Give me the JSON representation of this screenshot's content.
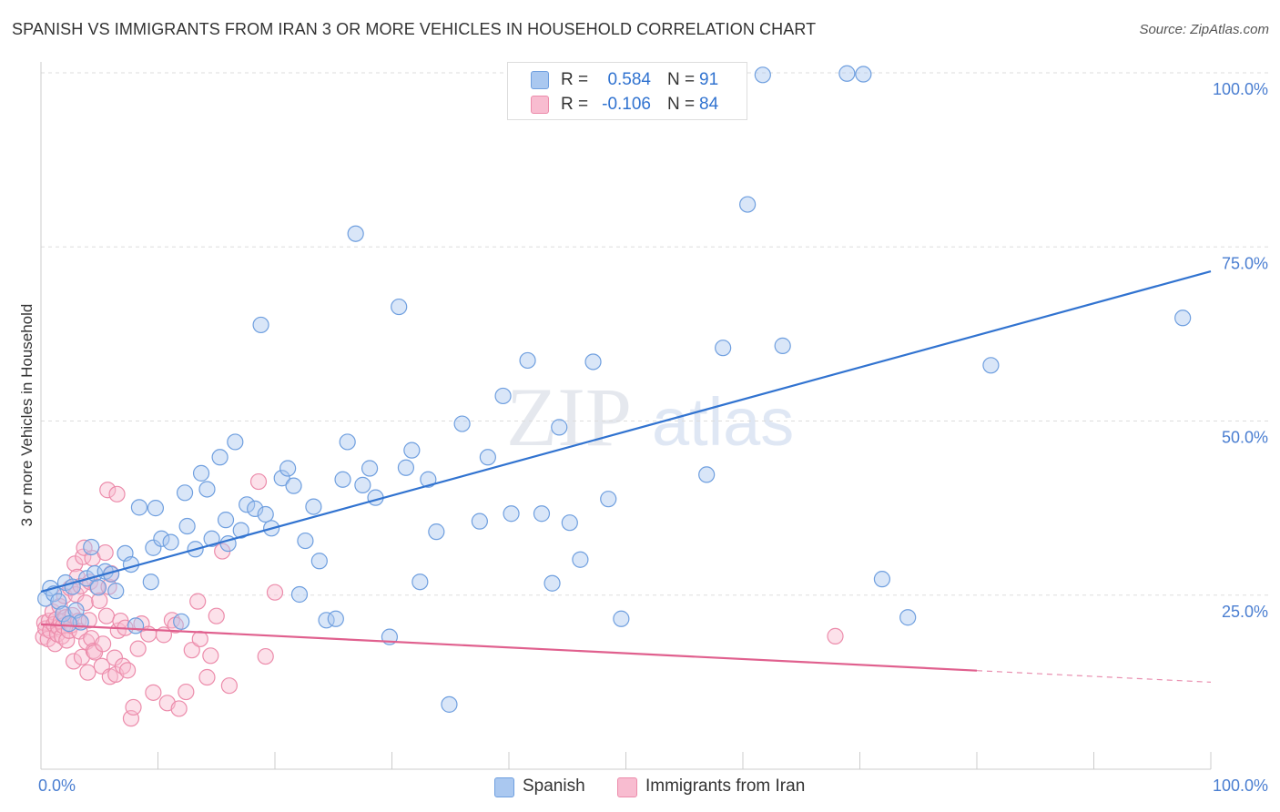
{
  "header": {
    "title": "SPANISH VS IMMIGRANTS FROM IRAN 3 OR MORE VEHICLES IN HOUSEHOLD CORRELATION CHART",
    "source": "Source: ZipAtlas.com"
  },
  "watermark": {
    "part1": "ZIP",
    "part2": "atlas"
  },
  "colors": {
    "spanish_fill": "#aac8f0",
    "spanish_stroke": "#6f9fdf",
    "spanish_line": "#3173d0",
    "iran_fill": "#f8bcd0",
    "iran_stroke": "#ec8cab",
    "iran_line": "#e0608e",
    "axis_label": "#4a7ed1",
    "grid": "#dddddd"
  },
  "legend": {
    "rows": [
      {
        "series": "spanish",
        "r_label": "R =",
        "r_value": "0.584",
        "n_label": "N =",
        "n_value": "91"
      },
      {
        "series": "iran",
        "r_label": "R =",
        "r_value": "-0.106",
        "n_label": "N =",
        "n_value": "84"
      }
    ]
  },
  "chart_data": {
    "type": "scatter",
    "title": "SPANISH VS IMMIGRANTS FROM IRAN 3 OR MORE VEHICLES IN HOUSEHOLD CORRELATION CHART",
    "xlabel": "",
    "ylabel": "3 or more Vehicles in Household",
    "xlim": [
      0,
      100
    ],
    "ylim": [
      0,
      100
    ],
    "x_tick_labels": [
      "0.0%",
      "100.0%"
    ],
    "y_tick_labels": [
      {
        "value": 100,
        "label": "100.0%"
      },
      {
        "value": 75,
        "label": "75.0%"
      },
      {
        "value": 50,
        "label": "50.0%"
      },
      {
        "value": 25,
        "label": "25.0%"
      }
    ],
    "grid": true,
    "legend_position": "top-center",
    "series": [
      {
        "name": "Spanish",
        "r": 0.584,
        "n": 91,
        "trend": {
          "x0": 0,
          "y0": 25.5,
          "x1": 100,
          "y1": 71.5,
          "solid_until": 100
        },
        "points": [
          [
            0.4,
            24.5
          ],
          [
            0.8,
            26.0
          ],
          [
            1.1,
            25.2
          ],
          [
            1.5,
            24.1
          ],
          [
            1.9,
            22.3
          ],
          [
            2.1,
            26.8
          ],
          [
            2.7,
            26.2
          ],
          [
            3.0,
            22.8
          ],
          [
            3.4,
            21.1
          ],
          [
            3.9,
            27.4
          ],
          [
            4.3,
            31.9
          ],
          [
            4.6,
            28.1
          ],
          [
            4.9,
            26.1
          ],
          [
            5.5,
            28.4
          ],
          [
            6.0,
            28.0
          ],
          [
            6.4,
            25.6
          ],
          [
            7.2,
            31.0
          ],
          [
            7.7,
            29.4
          ],
          [
            8.4,
            37.6
          ],
          [
            9.4,
            26.9
          ],
          [
            9.6,
            31.8
          ],
          [
            9.8,
            37.5
          ],
          [
            10.3,
            33.1
          ],
          [
            11.1,
            32.6
          ],
          [
            12.3,
            39.7
          ],
          [
            12.5,
            34.9
          ],
          [
            13.2,
            31.6
          ],
          [
            13.7,
            42.5
          ],
          [
            14.2,
            40.2
          ],
          [
            14.6,
            33.1
          ],
          [
            15.3,
            44.8
          ],
          [
            15.8,
            35.8
          ],
          [
            16.0,
            32.4
          ],
          [
            16.6,
            47.0
          ],
          [
            17.1,
            34.3
          ],
          [
            17.6,
            38.0
          ],
          [
            18.3,
            37.4
          ],
          [
            18.8,
            63.8
          ],
          [
            19.2,
            36.6
          ],
          [
            19.7,
            34.6
          ],
          [
            20.6,
            41.8
          ],
          [
            21.1,
            43.2
          ],
          [
            21.6,
            40.7
          ],
          [
            22.1,
            25.1
          ],
          [
            22.6,
            32.8
          ],
          [
            23.3,
            37.7
          ],
          [
            23.8,
            29.9
          ],
          [
            24.4,
            21.4
          ],
          [
            25.2,
            21.6
          ],
          [
            25.8,
            41.6
          ],
          [
            26.2,
            47.0
          ],
          [
            26.9,
            76.9
          ],
          [
            27.5,
            40.8
          ],
          [
            28.1,
            43.2
          ],
          [
            28.6,
            39.0
          ],
          [
            29.8,
            19.0
          ],
          [
            30.6,
            66.4
          ],
          [
            31.2,
            43.3
          ],
          [
            31.7,
            45.8
          ],
          [
            32.4,
            26.9
          ],
          [
            33.1,
            41.6
          ],
          [
            33.8,
            34.1
          ],
          [
            34.9,
            9.3
          ],
          [
            36.0,
            49.6
          ],
          [
            37.5,
            35.6
          ],
          [
            38.2,
            44.8
          ],
          [
            39.5,
            53.6
          ],
          [
            40.2,
            36.7
          ],
          [
            41.6,
            58.7
          ],
          [
            42.8,
            36.7
          ],
          [
            43.7,
            26.7
          ],
          [
            44.3,
            49.1
          ],
          [
            45.2,
            35.4
          ],
          [
            46.1,
            30.1
          ],
          [
            47.2,
            58.5
          ],
          [
            48.5,
            38.8
          ],
          [
            49.6,
            21.6
          ],
          [
            56.9,
            42.3
          ],
          [
            58.3,
            60.5
          ],
          [
            60.4,
            81.1
          ],
          [
            61.7,
            99.7
          ],
          [
            63.4,
            60.8
          ],
          [
            68.9,
            99.9
          ],
          [
            70.3,
            99.8
          ],
          [
            71.9,
            27.3
          ],
          [
            74.1,
            21.8
          ],
          [
            81.2,
            58.0
          ],
          [
            97.6,
            64.8
          ],
          [
            2.4,
            20.9
          ],
          [
            8.1,
            20.6
          ],
          [
            12.0,
            21.2
          ]
        ]
      },
      {
        "name": "Immigrants from Iran",
        "r": -0.106,
        "n": 84,
        "trend": {
          "x0": 0,
          "y0": 20.8,
          "x1": 100,
          "y1": 12.5,
          "solid_until": 80
        },
        "points": [
          [
            0.2,
            19.0
          ],
          [
            0.3,
            21.0
          ],
          [
            0.4,
            20.2
          ],
          [
            0.6,
            18.7
          ],
          [
            0.7,
            21.3
          ],
          [
            0.8,
            19.9
          ],
          [
            1.0,
            22.6
          ],
          [
            1.1,
            20.8
          ],
          [
            1.2,
            18.0
          ],
          [
            1.3,
            21.5
          ],
          [
            1.4,
            19.4
          ],
          [
            1.5,
            20.4
          ],
          [
            1.6,
            23.4
          ],
          [
            1.7,
            21.2
          ],
          [
            1.8,
            19.1
          ],
          [
            1.9,
            20.6
          ],
          [
            2.0,
            24.9
          ],
          [
            2.1,
            21.8
          ],
          [
            2.2,
            18.5
          ],
          [
            2.4,
            19.9
          ],
          [
            2.5,
            26.0
          ],
          [
            2.6,
            20.7
          ],
          [
            2.7,
            22.1
          ],
          [
            2.8,
            15.5
          ],
          [
            2.9,
            29.5
          ],
          [
            3.0,
            25.1
          ],
          [
            3.1,
            27.6
          ],
          [
            3.2,
            21.3
          ],
          [
            3.3,
            19.8
          ],
          [
            3.4,
            26.3
          ],
          [
            3.5,
            16.1
          ],
          [
            3.6,
            30.5
          ],
          [
            3.7,
            31.8
          ],
          [
            3.8,
            23.9
          ],
          [
            3.9,
            18.3
          ],
          [
            4.0,
            13.9
          ],
          [
            4.1,
            21.4
          ],
          [
            4.2,
            26.9
          ],
          [
            4.3,
            18.8
          ],
          [
            4.4,
            30.3
          ],
          [
            4.5,
            17.0
          ],
          [
            4.6,
            16.8
          ],
          [
            4.8,
            26.2
          ],
          [
            5.0,
            24.2
          ],
          [
            5.2,
            14.8
          ],
          [
            5.3,
            18.0
          ],
          [
            5.5,
            31.1
          ],
          [
            5.6,
            22.0
          ],
          [
            5.7,
            40.1
          ],
          [
            5.8,
            26.2
          ],
          [
            5.9,
            13.3
          ],
          [
            6.0,
            28.1
          ],
          [
            6.3,
            16.0
          ],
          [
            6.4,
            13.6
          ],
          [
            6.5,
            39.5
          ],
          [
            6.6,
            19.9
          ],
          [
            6.8,
            21.3
          ],
          [
            7.0,
            14.8
          ],
          [
            7.2,
            20.3
          ],
          [
            7.4,
            14.2
          ],
          [
            7.7,
            7.3
          ],
          [
            7.9,
            8.9
          ],
          [
            8.3,
            17.3
          ],
          [
            8.6,
            20.9
          ],
          [
            9.2,
            19.4
          ],
          [
            9.6,
            11.0
          ],
          [
            10.5,
            19.3
          ],
          [
            10.8,
            9.5
          ],
          [
            11.2,
            21.4
          ],
          [
            11.5,
            20.7
          ],
          [
            11.8,
            8.7
          ],
          [
            12.4,
            11.1
          ],
          [
            12.9,
            17.1
          ],
          [
            13.4,
            24.1
          ],
          [
            13.6,
            18.7
          ],
          [
            14.2,
            13.2
          ],
          [
            14.5,
            16.3
          ],
          [
            15.0,
            22.0
          ],
          [
            15.5,
            31.3
          ],
          [
            16.1,
            12.0
          ],
          [
            18.6,
            41.3
          ],
          [
            19.2,
            16.2
          ],
          [
            20.0,
            25.4
          ],
          [
            67.9,
            19.1
          ]
        ]
      }
    ]
  },
  "bottom_legend": {
    "items": [
      {
        "series": "spanish",
        "label": "Spanish"
      },
      {
        "series": "iran",
        "label": "Immigrants from Iran"
      }
    ]
  }
}
